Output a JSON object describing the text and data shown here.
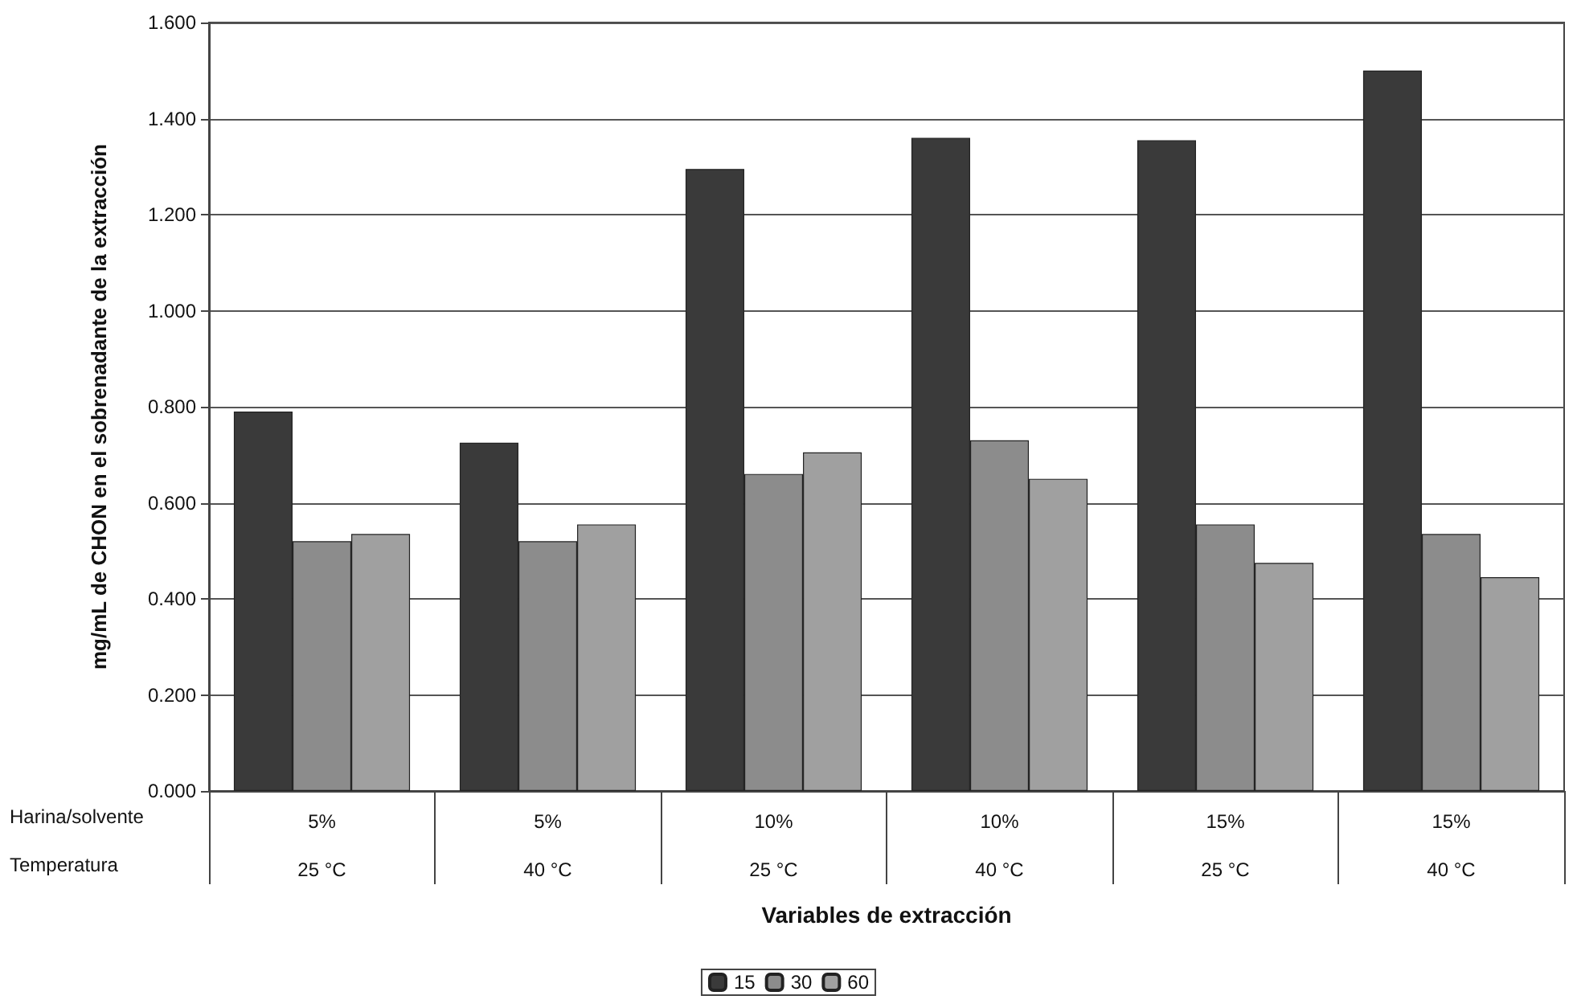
{
  "chart_data": {
    "type": "bar",
    "xlabel": "Variables de extracción",
    "ylabel": "mg/mL de CHON en el sobrenadante de la extracción",
    "categories": [
      "5%\n25 °C",
      "5%\n40 °C",
      "10%\n25 °C",
      "10%\n40 °C",
      "15%\n25 °C",
      "15%\n40 °C"
    ],
    "series": [
      {
        "name": "15",
        "color": "#3a3a3a",
        "values": [
          0.79,
          0.725,
          1.295,
          1.36,
          1.355,
          1.5
        ]
      },
      {
        "name": "30",
        "color": "#8c8c8c",
        "values": [
          0.52,
          0.52,
          0.66,
          0.73,
          0.555,
          0.535
        ]
      },
      {
        "name": "60",
        "color": "#a0a0a0",
        "values": [
          0.535,
          0.555,
          0.705,
          0.65,
          0.475,
          0.445
        ]
      }
    ],
    "annotations": [
      "Harina/solvente",
      "Temperatura"
    ],
    "ylim": [
      0,
      1.6
    ],
    "yticks": [
      {
        "value": 0,
        "label": "0.000"
      },
      {
        "value": 0.2,
        "label": "0.200"
      },
      {
        "value": 0.4,
        "label": "0.400"
      },
      {
        "value": 0.6,
        "label": "0.600"
      },
      {
        "value": 0.8,
        "label": "0.800"
      },
      {
        "value": 1.0,
        "label": "1.000"
      },
      {
        "value": 1.2,
        "label": "1.200"
      },
      {
        "value": 1.4,
        "label": "1.400"
      },
      {
        "value": 1.6,
        "label": "1.600"
      }
    ],
    "grid": "y",
    "legend": "bottom"
  }
}
